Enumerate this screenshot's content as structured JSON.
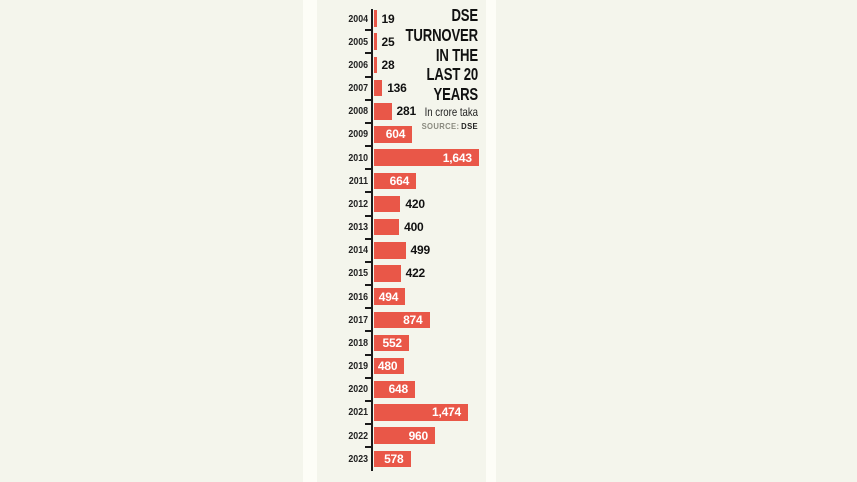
{
  "colors": {
    "background": "#f4f5ec",
    "gutter": "#fdfdf7",
    "bar": "#e95748",
    "axis": "#1a1a1a",
    "tick": "#1a1a1a",
    "year_label": "#222222",
    "value_inside": "#ffffff",
    "value_outside": "#111111",
    "title": "#111111",
    "unit": "#222222",
    "source_label": "#8b8b80",
    "source_value": "#222222"
  },
  "chart_data": {
    "type": "bar",
    "orientation": "horizontal",
    "title": "DSE TURNOVER IN THE LAST 20 YEARS",
    "title_lines": [
      "DSE",
      "TURNOVER",
      "IN THE",
      "LAST 20",
      "YEARS"
    ],
    "unit_label": "In crore taka",
    "source_label": "SOURCE:",
    "source_value": "DSE",
    "categories": [
      "2004",
      "2005",
      "2006",
      "2007",
      "2008",
      "2009",
      "2010",
      "2011",
      "2012",
      "2013",
      "2014",
      "2015",
      "2016",
      "2017",
      "2018",
      "2019",
      "2020",
      "2021",
      "2022",
      "2023"
    ],
    "values": [
      19,
      25,
      28,
      136,
      281,
      604,
      1643,
      664,
      420,
      400,
      499,
      422,
      494,
      874,
      552,
      480,
      648,
      1474,
      960,
      578
    ],
    "display_values": [
      "19",
      "25",
      "28",
      "136",
      "281",
      "604",
      "1,643",
      "664",
      "420",
      "400",
      "499",
      "422",
      "494",
      "874",
      "552",
      "480",
      "648",
      "1,474",
      "960",
      "578"
    ],
    "label_inside": [
      false,
      false,
      false,
      false,
      false,
      true,
      true,
      true,
      false,
      false,
      false,
      false,
      true,
      true,
      true,
      true,
      true,
      true,
      true,
      true
    ],
    "xlim": [
      0,
      1700
    ],
    "grid": false,
    "legend": false
  }
}
